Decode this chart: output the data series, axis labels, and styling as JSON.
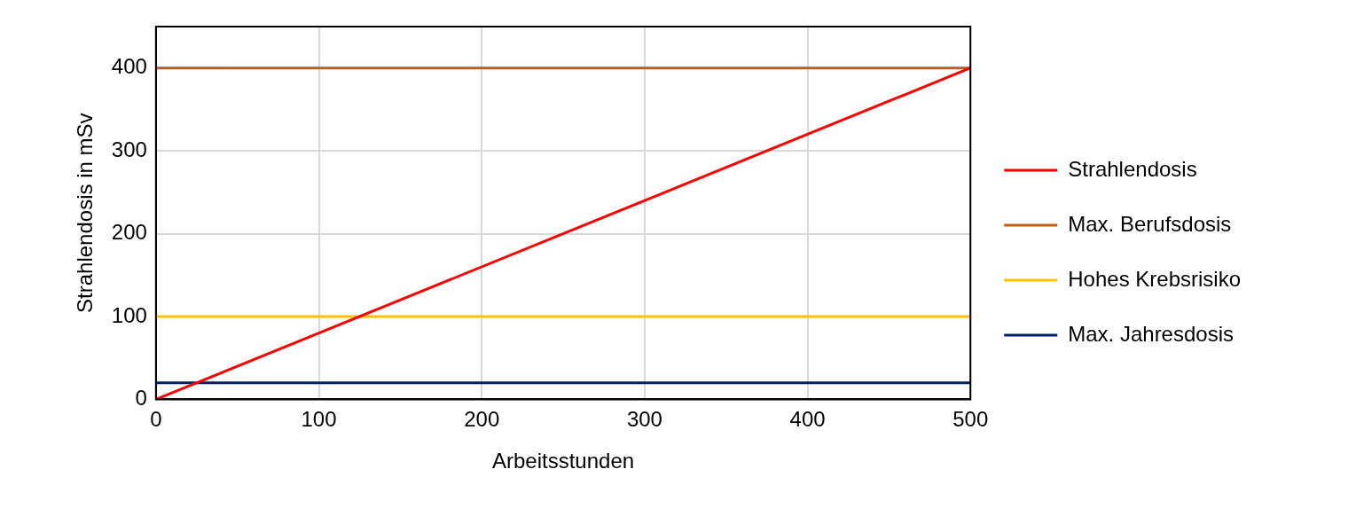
{
  "chart_data": {
    "type": "line",
    "xlabel": "Arbeitsstunden",
    "ylabel": "Strahlendosis in mSv",
    "x": [
      0,
      500
    ],
    "series": [
      {
        "name": "Strahlendosis",
        "color": "#ff0000",
        "values": [
          0,
          400
        ]
      },
      {
        "name": "Max. Berufsdosis",
        "color": "#c55a11",
        "values": [
          400,
          400
        ]
      },
      {
        "name": "Hohes Krebsrisiko",
        "color": "#ffc000",
        "values": [
          100,
          100
        ]
      },
      {
        "name": "Max. Jahresdosis",
        "color": "#002060",
        "values": [
          20,
          20
        ]
      }
    ],
    "xlim": [
      0,
      500
    ],
    "xticks": [
      0,
      100,
      200,
      300,
      400,
      500
    ],
    "ylim": [
      0,
      450
    ],
    "yticks": [
      0,
      100,
      200,
      300,
      400
    ],
    "grid": true,
    "legend": "right",
    "marker": "none",
    "line_style": "solid"
  }
}
